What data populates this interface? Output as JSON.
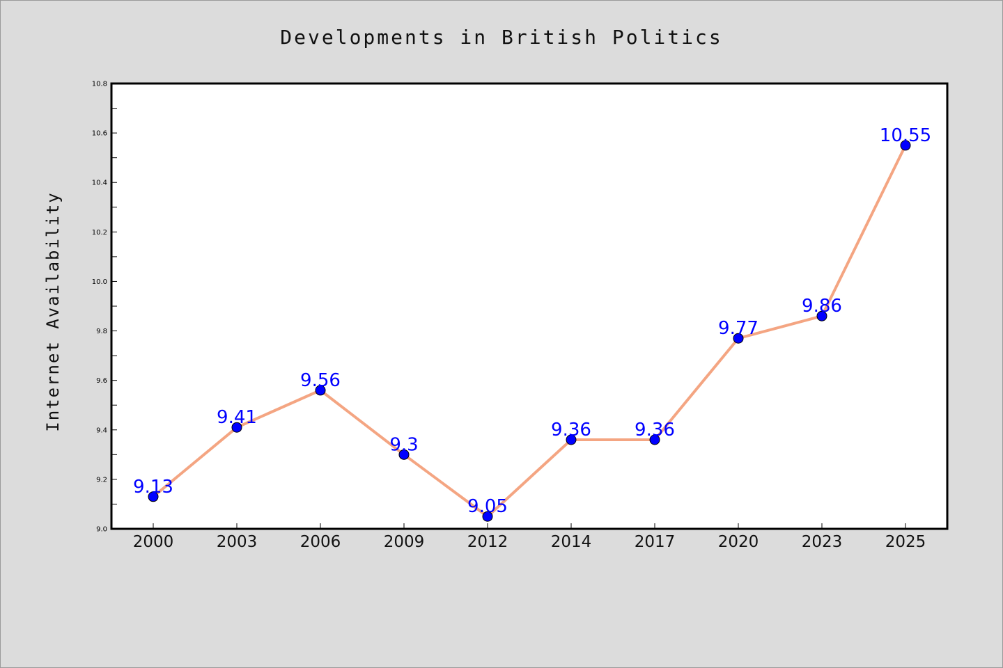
{
  "chart_data": {
    "type": "line",
    "title": "Developments in British Politics",
    "xlabel": "",
    "ylabel": "Internet Availability",
    "categories": [
      "2000",
      "2003",
      "2006",
      "2009",
      "2012",
      "2014",
      "2017",
      "2020",
      "2023",
      "2025"
    ],
    "series": [
      {
        "values": [
          9.13,
          9.41,
          9.56,
          9.3,
          9.05,
          9.36,
          9.36,
          9.77,
          9.86,
          10.55
        ]
      }
    ],
    "data_labels": [
      "9.13",
      "9.41",
      "9.56",
      "9.3",
      "9.05",
      "9.36",
      "9.36",
      "9.77",
      "9.86",
      "10.55"
    ],
    "ylim": [
      9.0,
      10.8
    ],
    "yticks": [
      "9.0",
      "9.2",
      "9.4",
      "9.6",
      "9.8",
      "10.0",
      "10.2",
      "10.4",
      "10.6",
      "10.8"
    ],
    "grid": false,
    "colors": {
      "line": "#f4a582",
      "marker": "#0000ff",
      "label": "#0000ff",
      "figure_background": "#dcdcdc",
      "plot_background": "#ffffff"
    }
  }
}
